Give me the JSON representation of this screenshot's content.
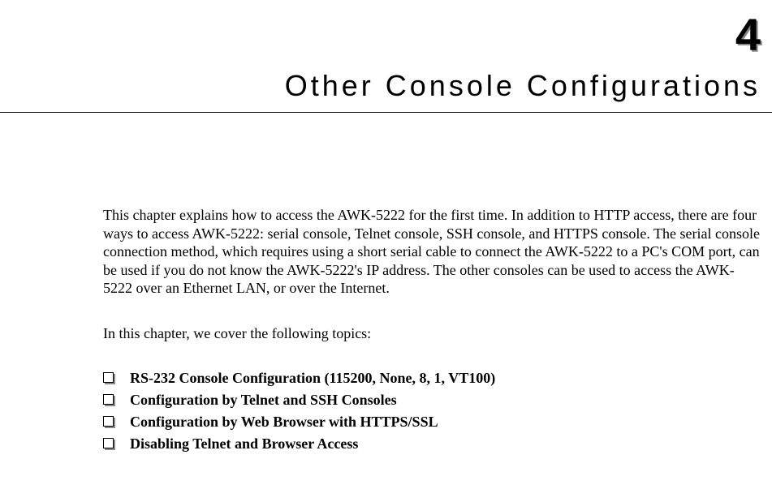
{
  "chapter": {
    "number": "4",
    "title": "Other Console Configurations"
  },
  "intro_paragraph": "This chapter explains how to access the AWK-5222 for the first time. In addition to HTTP access, there are four ways to access AWK-5222: serial console, Telnet console, SSH console, and HTTPS console. The serial console connection method, which requires using a short serial cable to connect the AWK-5222 to a PC's COM port, can be used if you do not know the AWK-5222's IP address. The other consoles can be used to access the AWK-5222 over an Ethernet LAN, or over the Internet.",
  "topics_intro": "In this chapter, we cover the following topics:",
  "topics": [
    "RS-232 Console Configuration (115200, None, 8, 1, VT100)",
    "Configuration by Telnet and SSH Consoles",
    "Configuration by Web Browser with HTTPS/SSL",
    "Disabling Telnet and Browser Access"
  ],
  "colors": {
    "background": "#ffffff",
    "text": "#000000",
    "shadow": "#888888",
    "checkbox_shadow": "#8a8a8a"
  },
  "typography": {
    "chapter_number_size": 56,
    "chapter_title_size": 36,
    "body_size": 18
  }
}
